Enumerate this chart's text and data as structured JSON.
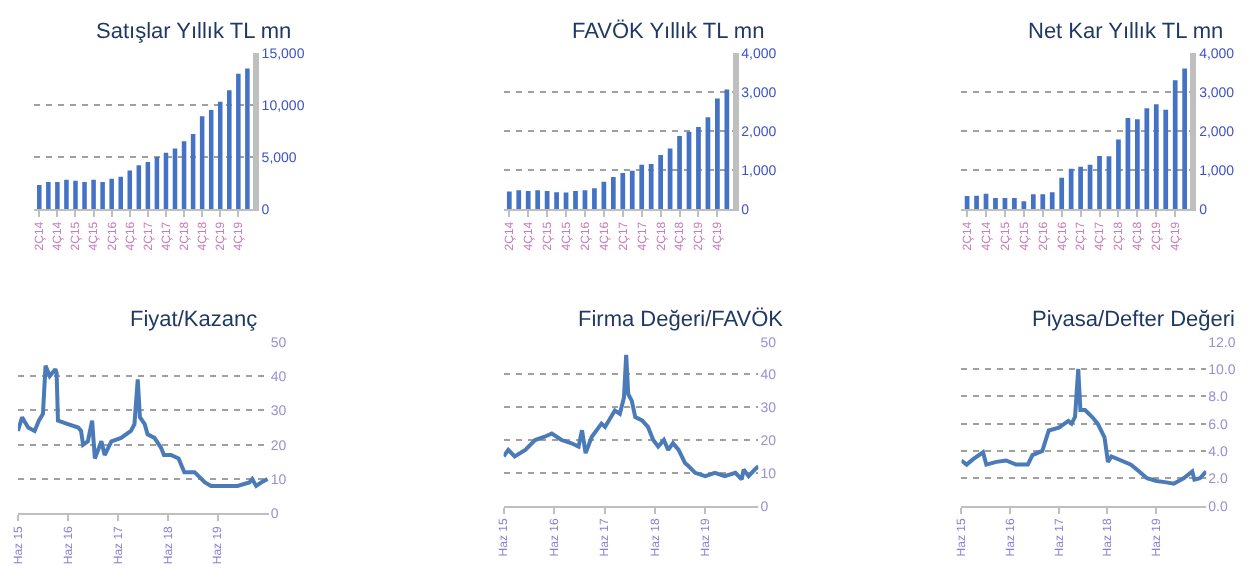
{
  "chart_data": [
    {
      "type": "bar",
      "title": "Satışlar Yıllık TL mn",
      "categories": [
        "2Ç14",
        null,
        "4Ç14",
        null,
        "2Ç15",
        null,
        "4Ç15",
        null,
        "2Ç16",
        null,
        "4Ç16",
        null,
        "2Ç17",
        null,
        "4Ç17",
        null,
        "2Ç18",
        null,
        "4Ç18",
        null,
        "2Ç19",
        null,
        "4Ç19",
        null
      ],
      "values": [
        2300,
        2600,
        2600,
        2800,
        2700,
        2600,
        2800,
        2600,
        2900,
        3100,
        3700,
        4200,
        4500,
        5000,
        5400,
        5800,
        6500,
        7200,
        8900,
        9500,
        10300,
        11400,
        13000,
        13500
      ],
      "color": "#4472c4",
      "ylim": [
        0,
        15000
      ],
      "yticks": [
        0,
        {
          "value": 5000,
          "label": "5,000"
        },
        {
          "value": 10000,
          "label": "10,000"
        },
        {
          "value": 15000,
          "label": "15,000"
        }
      ],
      "grid": "y"
    },
    {
      "type": "bar",
      "title": "FAVÖK Yıllık TL mn",
      "categories": [
        "2Ç14",
        null,
        "4Ç14",
        null,
        "2Ç15",
        null,
        "4Ç15",
        null,
        "2Ç16",
        null,
        "4Ç16",
        null,
        "2Ç17",
        null,
        "4Ç17",
        null,
        "2Ç18",
        null,
        "4Ç18",
        null,
        "2Ç19",
        null,
        "4Ç19",
        null
      ],
      "values": [
        450,
        480,
        460,
        480,
        460,
        430,
        420,
        460,
        480,
        530,
        700,
        820,
        920,
        980,
        1130,
        1150,
        1380,
        1550,
        1870,
        1980,
        2100,
        2350,
        2830,
        3060
      ],
      "color": "#4472c4",
      "ylim": [
        0,
        4000
      ],
      "yticks": [
        0,
        {
          "value": 1000,
          "label": "1,000"
        },
        {
          "value": 2000,
          "label": "2,000"
        },
        {
          "value": 3000,
          "label": "3,000"
        },
        {
          "value": 4000,
          "label": "4,000"
        }
      ],
      "grid": "y"
    },
    {
      "type": "bar",
      "title": "Net Kar Yıllık TL mn",
      "categories": [
        "2Ç14",
        null,
        "4Ç14",
        null,
        "2Ç15",
        null,
        "4Ç15",
        null,
        "2Ç16",
        null,
        "4Ç16",
        null,
        "2Ç17",
        null,
        "4Ç17",
        null,
        "2Ç18",
        null,
        "4Ç18",
        null,
        "2Ç19",
        null,
        "4Ç19",
        null
      ],
      "values": [
        330,
        340,
        390,
        280,
        280,
        280,
        200,
        380,
        380,
        430,
        800,
        1030,
        1080,
        1130,
        1360,
        1350,
        1780,
        2330,
        2300,
        2580,
        2680,
        2540,
        3300,
        3600
      ],
      "color": "#4472c4",
      "ylim": [
        0,
        4000
      ],
      "yticks": [
        0,
        {
          "value": 1000,
          "label": "1,000"
        },
        {
          "value": 2000,
          "label": "2,000"
        },
        {
          "value": 3000,
          "label": "3,000"
        },
        {
          "value": 4000,
          "label": "4,000"
        }
      ],
      "grid": "y"
    },
    {
      "type": "line",
      "title": "Fiyat/Kazanç",
      "x": [
        "2015-06-01",
        "2015-07-01",
        "2015-08-15",
        "2015-10-01",
        "2015-11-01",
        "2015-12-01",
        "2015-12-20",
        "2016-01-20",
        "2016-03-01",
        "2016-03-10",
        "2016-03-20",
        "2016-06-01",
        "2016-08-15",
        "2016-09-05",
        "2016-09-20",
        "2016-10-25",
        "2016-11-25",
        "2016-12-15",
        "2017-02-01",
        "2017-02-25",
        "2017-04-15",
        "2017-06-25",
        "2017-09-05",
        "2017-10-01",
        "2017-10-25",
        "2017-11-10",
        "2017-12-15",
        "2018-01-05",
        "2018-02-25",
        "2018-04-15",
        "2018-05-05",
        "2018-06-25",
        "2018-08-20",
        "2018-10-01",
        "2018-12-15",
        "2019-03-01",
        "2019-04-15",
        "2019-07-20",
        "2019-10-25",
        "2020-01-20",
        "2020-02-10",
        "2020-03-10",
        "2020-04-15",
        "2020-06-01"
      ],
      "values": [
        24,
        28,
        25,
        24,
        27,
        29,
        43,
        40,
        42,
        41,
        27,
        26,
        25,
        24,
        20,
        21,
        27,
        16,
        21,
        17,
        21,
        22,
        24,
        26,
        39,
        28,
        26,
        23,
        22,
        19,
        17,
        17,
        16,
        12,
        12,
        9,
        8,
        8,
        8,
        9,
        10,
        8,
        9,
        10
      ],
      "color": "#4a7ab8",
      "xlim": [
        "2015-06-01",
        "2020-06-10"
      ],
      "xticks": [
        {
          "value": "2015-06-01",
          "label": "Haz 15"
        },
        {
          "value": "2016-06-01",
          "label": "Haz 16"
        },
        {
          "value": "2017-06-01",
          "label": "Haz 17"
        },
        {
          "value": "2018-06-01",
          "label": "Haz 18"
        },
        {
          "value": "2019-06-01",
          "label": "Haz 19"
        }
      ],
      "ylim": [
        0,
        50
      ],
      "yticks": [
        0,
        10,
        20,
        30,
        40,
        50
      ],
      "grid": "y"
    },
    {
      "type": "line",
      "title": "Firma Değeri/FAVÖK",
      "x": [
        "2015-06-01",
        "2015-07-05",
        "2015-08-20",
        "2015-11-05",
        "2016-01-15",
        "2016-03-25",
        "2016-05-15",
        "2016-07-25",
        "2016-10-05",
        "2016-11-25",
        "2016-12-20",
        "2017-01-15",
        "2017-03-01",
        "2017-05-10",
        "2017-06-05",
        "2017-08-15",
        "2017-09-20",
        "2017-10-20",
        "2017-11-05",
        "2017-11-20",
        "2017-12-15",
        "2018-01-10",
        "2018-02-28",
        "2018-04-12",
        "2018-05-20",
        "2018-06-25",
        "2018-08-05",
        "2018-09-05",
        "2018-10-10",
        "2018-11-20",
        "2019-01-05",
        "2019-02-01",
        "2019-03-20",
        "2019-06-01",
        "2019-08-10",
        "2019-10-20",
        "2020-01-05",
        "2020-02-20",
        "2020-03-05",
        "2020-04-10",
        "2020-05-25",
        "2020-06-20"
      ],
      "values": [
        15,
        17,
        15,
        17,
        20,
        21,
        22,
        20,
        19,
        18,
        23,
        16,
        21,
        25,
        24,
        29,
        28,
        33,
        46,
        34,
        32,
        27,
        26,
        24,
        20,
        18,
        20,
        17,
        19,
        17,
        13,
        12,
        10,
        9,
        10,
        9,
        10,
        8,
        11,
        9,
        11,
        12
      ],
      "color": "#4a7ab8",
      "xlim": [
        "2015-06-01",
        "2020-06-20"
      ],
      "xticks": [
        {
          "value": "2015-06-01",
          "label": "Haz 15"
        },
        {
          "value": "2016-06-01",
          "label": "Haz 16"
        },
        {
          "value": "2017-06-01",
          "label": "Haz 17"
        },
        {
          "value": "2018-06-01",
          "label": "Haz 18"
        },
        {
          "value": "2019-06-01",
          "label": "Haz 19"
        }
      ],
      "ylim": [
        0,
        50
      ],
      "yticks": [
        0,
        10,
        20,
        30,
        40,
        50
      ],
      "grid": "y"
    },
    {
      "type": "line",
      "title": "Piyasa/Defter Değeri",
      "x": [
        "2015-06-01",
        "2015-07-10",
        "2015-08-28",
        "2015-11-10",
        "2015-12-05",
        "2016-02-18",
        "2016-05-01",
        "2016-07-15",
        "2016-10-12",
        "2016-11-15",
        "2017-01-28",
        "2017-03-18",
        "2017-06-01",
        "2017-08-12",
        "2017-09-05",
        "2017-10-01",
        "2017-10-25",
        "2017-11-10",
        "2017-12-15",
        "2018-02-05",
        "2018-03-20",
        "2018-05-10",
        "2018-06-05",
        "2018-07-01",
        "2018-09-12",
        "2018-11-25",
        "2019-01-12",
        "2019-03-25",
        "2019-06-05",
        "2019-08-18",
        "2019-10-12",
        "2019-12-25",
        "2020-02-28",
        "2020-03-15",
        "2020-04-25",
        "2020-06-12"
      ],
      "values": [
        3.3,
        3.0,
        3.4,
        3.9,
        3.0,
        3.2,
        3.3,
        3.0,
        3.0,
        3.7,
        4.0,
        5.5,
        5.7,
        6.2,
        6.0,
        6.5,
        10.0,
        7.0,
        7.0,
        6.5,
        6.0,
        5.0,
        3.2,
        3.6,
        3.3,
        3.0,
        2.6,
        2.0,
        1.8,
        1.7,
        1.6,
        2.0,
        2.5,
        1.9,
        2.0,
        2.5
      ],
      "color": "#4a7ab8",
      "xlim": [
        "2015-06-01",
        "2020-06-12"
      ],
      "xticks": [
        {
          "value": "2015-06-01",
          "label": "Haz 15"
        },
        {
          "value": "2016-06-01",
          "label": "Haz 16"
        },
        {
          "value": "2017-06-01",
          "label": "Haz 17"
        },
        {
          "value": "2018-06-01",
          "label": "Haz 18"
        },
        {
          "value": "2019-06-01",
          "label": "Haz 19"
        }
      ],
      "ylim": [
        0,
        12
      ],
      "yticks": [
        {
          "value": 0,
          "label": "0.0"
        },
        {
          "value": 2,
          "label": "2.0"
        },
        {
          "value": 4,
          "label": "4.0"
        },
        {
          "value": 6,
          "label": "6.0"
        },
        {
          "value": 8,
          "label": "8.0"
        },
        {
          "value": 10,
          "label": "10.0"
        },
        {
          "value": 12,
          "label": "12.0"
        }
      ],
      "grid": "y"
    }
  ]
}
